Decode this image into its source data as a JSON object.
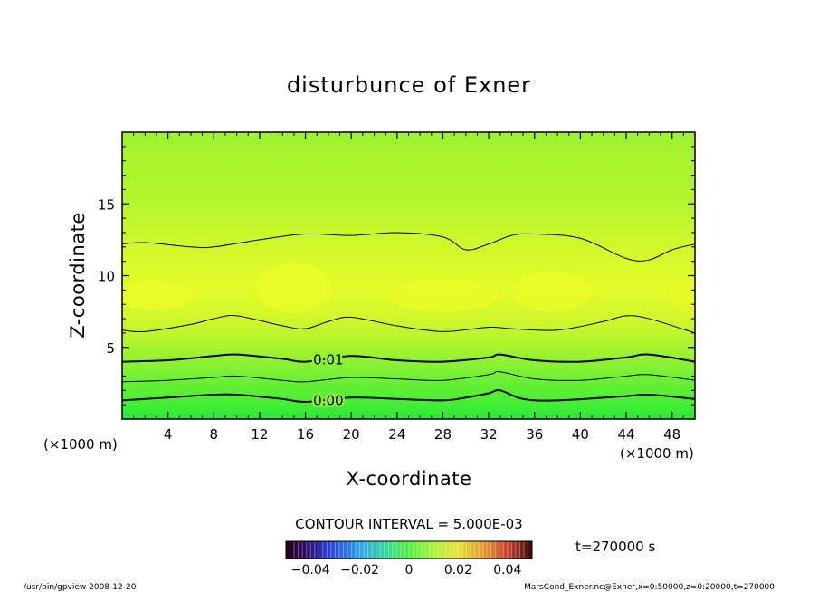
{
  "chart_data": {
    "type": "heatmap",
    "title": "disturbunce of Exner",
    "xlabel": "X-coordinate",
    "ylabel": "Z-coordinate",
    "x_unit_left": "(×1000 m)",
    "x_unit_right": "(×1000 m)",
    "xlim": [
      0,
      50
    ],
    "ylim": [
      0,
      20
    ],
    "xticks": [
      4,
      8,
      12,
      16,
      20,
      24,
      28,
      32,
      36,
      40,
      44,
      48
    ],
    "yticks": [
      5,
      10,
      15
    ],
    "contour_interval_label": "CONTOUR INTERVAL = 5.000E-03",
    "time_label": "t=270000 s",
    "colorbar": {
      "range": [
        -0.05,
        0.05
      ],
      "tick_values": [
        -0.04,
        -0.02,
        0,
        0.02,
        0.04
      ],
      "tick_labels": [
        "−0.04",
        "−0.02",
        "0",
        "0.02",
        "0.04"
      ]
    },
    "contours": [
      {
        "level": 0.0,
        "label": "0.00",
        "bold": true,
        "x": [
          0,
          4,
          8,
          10,
          14,
          16,
          20,
          24,
          28,
          30,
          32,
          33,
          35,
          38,
          44,
          46,
          50
        ],
        "z": [
          1.3,
          1.5,
          1.7,
          1.7,
          1.4,
          1.2,
          1.5,
          1.4,
          1.3,
          1.5,
          1.8,
          2.0,
          1.4,
          1.3,
          1.6,
          1.7,
          1.4
        ]
      },
      {
        "level": 0.005,
        "label": "",
        "bold": false,
        "x": [
          0,
          4,
          8,
          10,
          14,
          16,
          20,
          24,
          28,
          32,
          33,
          36,
          40,
          44,
          46,
          50
        ],
        "z": [
          2.6,
          2.7,
          2.9,
          3.0,
          2.7,
          2.6,
          2.9,
          2.8,
          2.7,
          3.1,
          3.3,
          2.8,
          2.7,
          3.0,
          3.1,
          2.7
        ]
      },
      {
        "level": 0.01,
        "label": "0.01",
        "bold": true,
        "x": [
          0,
          4,
          8,
          10,
          14,
          16,
          20,
          24,
          28,
          32,
          33,
          36,
          40,
          44,
          46,
          50
        ],
        "z": [
          4.0,
          4.1,
          4.4,
          4.5,
          4.2,
          4.0,
          4.4,
          4.1,
          4.0,
          4.3,
          4.5,
          4.1,
          4.0,
          4.3,
          4.5,
          4.0
        ]
      },
      {
        "level": 0.015,
        "label": "",
        "bold": false,
        "x": [
          0,
          2,
          6,
          8,
          10,
          14,
          16,
          18,
          20,
          24,
          28,
          32,
          34,
          38,
          42,
          44,
          46,
          50
        ],
        "z": [
          6.2,
          6.1,
          6.6,
          7.0,
          7.2,
          6.5,
          6.3,
          6.8,
          7.1,
          6.5,
          6.1,
          6.4,
          6.3,
          6.2,
          6.8,
          7.2,
          7.0,
          6.0
        ]
      },
      {
        "level": 0.015,
        "label": "",
        "bold": false,
        "x": [
          0,
          2,
          6,
          8,
          12,
          16,
          20,
          24,
          28,
          30,
          32,
          34,
          36,
          40,
          44,
          46,
          48,
          50
        ],
        "z": [
          12.2,
          12.3,
          12.0,
          12.0,
          12.5,
          12.9,
          12.8,
          13.0,
          12.7,
          11.8,
          12.2,
          12.8,
          12.9,
          12.6,
          11.2,
          11.1,
          11.8,
          12.2
        ]
      }
    ],
    "footer_left": "/usr/bin/gpview   2008-12-20",
    "footer_right": "MarsCond_Exner.nc@Exner,x=0:50000,z=0:20000,t=270000"
  }
}
